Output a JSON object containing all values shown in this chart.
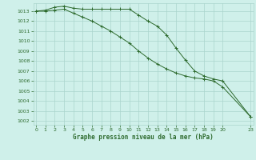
{
  "line1_x": [
    0,
    1,
    2,
    3,
    4,
    5,
    6,
    7,
    8,
    9,
    10,
    11,
    12,
    13,
    14,
    15,
    16,
    17,
    18,
    19,
    20,
    23
  ],
  "line1_y": [
    1013.0,
    1013.1,
    1013.4,
    1013.5,
    1013.3,
    1013.2,
    1013.2,
    1013.2,
    1013.2,
    1013.2,
    1013.2,
    1012.6,
    1012.0,
    1011.5,
    1010.6,
    1009.3,
    1008.1,
    1007.0,
    1006.5,
    1006.2,
    1006.0,
    1002.4
  ],
  "line2_x": [
    0,
    1,
    2,
    3,
    4,
    5,
    6,
    7,
    8,
    9,
    10,
    11,
    12,
    13,
    14,
    15,
    16,
    17,
    18,
    19,
    20,
    23
  ],
  "line2_y": [
    1013.0,
    1013.0,
    1013.1,
    1013.2,
    1012.8,
    1012.4,
    1012.0,
    1011.5,
    1011.0,
    1010.4,
    1009.8,
    1009.0,
    1008.3,
    1007.7,
    1007.2,
    1006.8,
    1006.5,
    1006.3,
    1006.2,
    1006.0,
    1005.4,
    1002.4
  ],
  "line_color": "#2d6a2d",
  "bg_color": "#cff0ea",
  "grid_color": "#aad4cc",
  "xlabel": "Graphe pression niveau de la mer (hPa)",
  "ylabel_ticks": [
    1002,
    1003,
    1004,
    1005,
    1006,
    1007,
    1008,
    1009,
    1010,
    1011,
    1012,
    1013
  ],
  "xticks": [
    0,
    1,
    2,
    3,
    4,
    5,
    6,
    7,
    8,
    9,
    10,
    11,
    12,
    13,
    14,
    15,
    16,
    17,
    18,
    19,
    20,
    23
  ],
  "ylim": [
    1001.6,
    1013.8
  ],
  "xlim": [
    -0.3,
    23.3
  ]
}
